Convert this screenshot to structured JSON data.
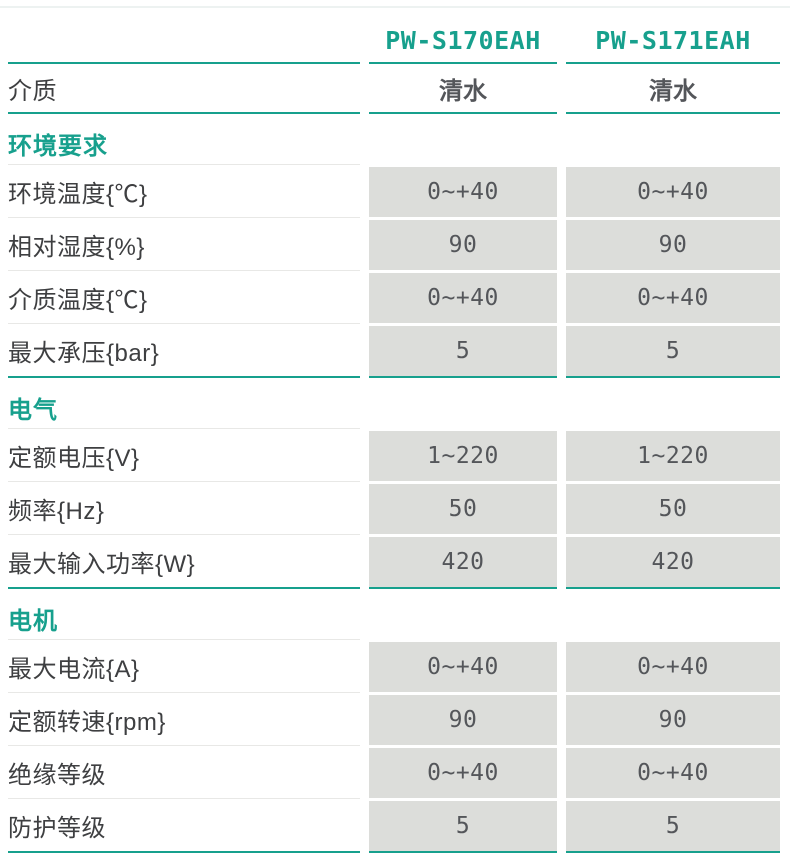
{
  "theme": {
    "accent_color": "#17a08d",
    "cell_background": "#dcddda",
    "label_color": "#3e3f41",
    "value_color": "#54565a"
  },
  "header": {
    "columns": [
      "PW-S170EAH",
      "PW-S171EAH"
    ]
  },
  "media_row": {
    "label": "介质",
    "values": [
      "清水",
      "清水"
    ]
  },
  "sections": [
    {
      "title": "环境要求",
      "rows": [
        {
          "label": "环境温度{℃}",
          "values": [
            "0~+40",
            "0~+40"
          ]
        },
        {
          "label": "相对湿度{%}",
          "values": [
            "90",
            "90"
          ]
        },
        {
          "label": "介质温度{℃}",
          "values": [
            "0~+40",
            "0~+40"
          ]
        },
        {
          "label": "最大承压{bar}",
          "values": [
            "5",
            "5"
          ]
        }
      ]
    },
    {
      "title": "电气",
      "rows": [
        {
          "label": "定额电压{V}",
          "values": [
            "1~220",
            "1~220"
          ]
        },
        {
          "label": "频率{Hz}",
          "values": [
            "50",
            "50"
          ]
        },
        {
          "label": "最大输入功率{W}",
          "values": [
            "420",
            "420"
          ]
        }
      ]
    },
    {
      "title": "电机",
      "rows": [
        {
          "label": "最大电流{A}",
          "values": [
            "0~+40",
            "0~+40"
          ]
        },
        {
          "label": "定额转速{rpm}",
          "values": [
            "90",
            "90"
          ]
        },
        {
          "label": "绝缘等级",
          "values": [
            "0~+40",
            "0~+40"
          ]
        },
        {
          "label": "防护等级",
          "values": [
            "5",
            "5"
          ]
        }
      ]
    }
  ]
}
